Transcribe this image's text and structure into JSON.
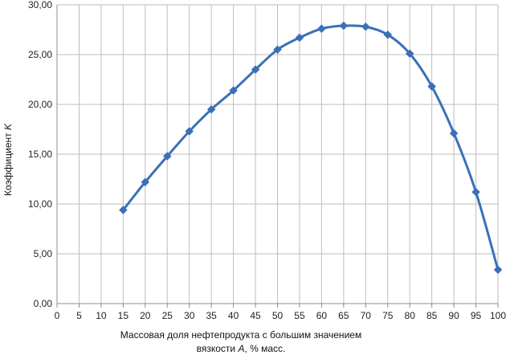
{
  "chart_data": {
    "type": "line",
    "xlabel_line1": "Массовая доля нефтепродукта с большим значением",
    "xlabel_line2_prefix": "вязкости ",
    "xlabel_line2_var": "A",
    "xlabel_line2_suffix": ", % масс.",
    "ylabel_prefix": "Коэффициент ",
    "ylabel_var": "K",
    "xlim": [
      0,
      100
    ],
    "ylim": [
      0,
      30
    ],
    "x_ticks": [
      "0",
      "5",
      "10",
      "15",
      "20",
      "25",
      "30",
      "35",
      "40",
      "45",
      "50",
      "55",
      "60",
      "65",
      "70",
      "75",
      "80",
      "85",
      "90",
      "95",
      "100"
    ],
    "y_ticks": [
      "0,00",
      "5,00",
      "10,00",
      "15,00",
      "20,00",
      "25,00",
      "30,00"
    ],
    "grid": true,
    "series": [
      {
        "color": "#3a70b8",
        "marker": "diamond",
        "x": [
          15,
          20,
          25,
          30,
          35,
          40,
          45,
          50,
          55,
          60,
          65,
          70,
          75,
          80,
          85,
          90,
          95,
          100
        ],
        "y": [
          9.4,
          12.2,
          14.8,
          17.3,
          19.5,
          21.4,
          23.5,
          25.5,
          26.7,
          27.6,
          27.9,
          27.8,
          27.0,
          25.1,
          21.8,
          17.1,
          11.2,
          3.4
        ]
      }
    ]
  }
}
